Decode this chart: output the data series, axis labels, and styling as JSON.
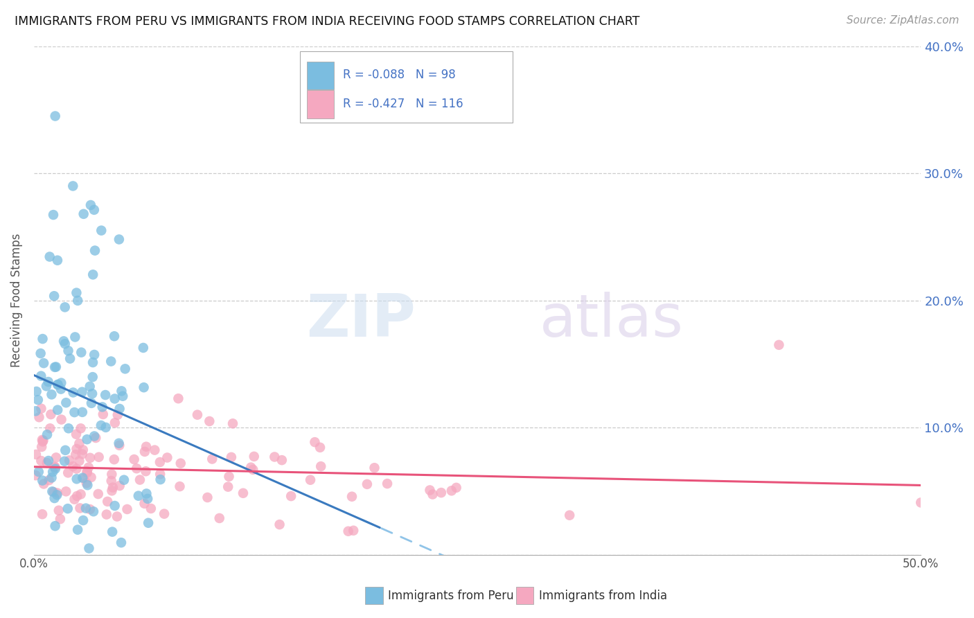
{
  "title": "IMMIGRANTS FROM PERU VS IMMIGRANTS FROM INDIA RECEIVING FOOD STAMPS CORRELATION CHART",
  "source": "Source: ZipAtlas.com",
  "ylabel": "Receiving Food Stamps",
  "xlim": [
    0,
    0.5
  ],
  "ylim": [
    0,
    0.4
  ],
  "yticks": [
    0.0,
    0.1,
    0.2,
    0.3,
    0.4
  ],
  "ytick_labels": [
    "",
    "10.0%",
    "20.0%",
    "30.0%",
    "40.0%"
  ],
  "xtick_labels": [
    "0.0%",
    "50.0%"
  ],
  "series": [
    {
      "label": "Immigrants from Peru",
      "R": -0.088,
      "N": 98,
      "color": "#7bbde0",
      "trend_color": "#3a7abf",
      "trend_dash_color": "#90c4e8"
    },
    {
      "label": "Immigrants from India",
      "R": -0.427,
      "N": 116,
      "color": "#f5a8c0",
      "trend_color": "#e8537a",
      "trend_dash_color": "#e8537a"
    }
  ],
  "watermark": "ZIPatlas",
  "legend_R1": "-0.088",
  "legend_N1": "98",
  "legend_R2": "-0.427",
  "legend_N2": "116"
}
